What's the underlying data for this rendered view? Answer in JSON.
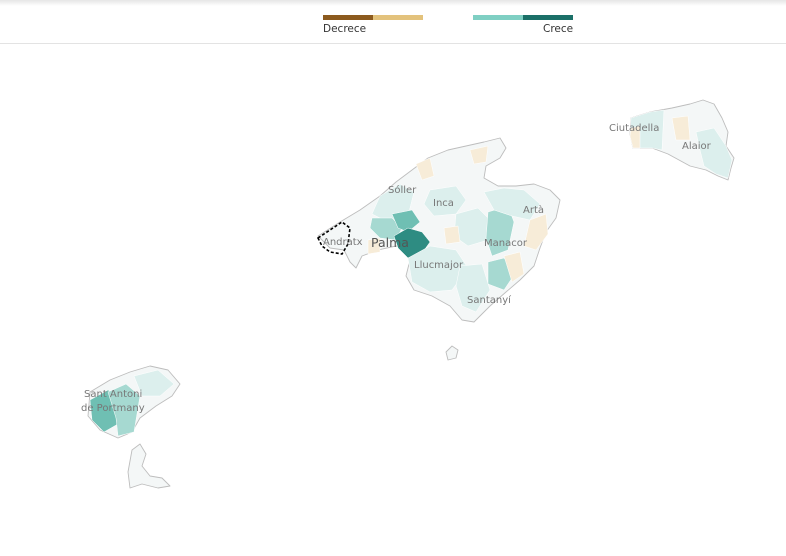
{
  "legend": {
    "decrease_label": "Decrece",
    "increase_label": "Crece",
    "decrease_colors": [
      "#8c5a1e",
      "#e3c27c"
    ],
    "increase_colors": [
      "#7fcfc3",
      "#1b7068"
    ]
  },
  "map": {
    "colors": {
      "coast": "#bdbdbd",
      "land_neutral": "#f4f7f7",
      "light_teal": "#dcefed",
      "mid_teal": "#a6d9d1",
      "teal": "#6fbfb3",
      "dark_teal": "#2e8c82",
      "light_beige": "#f7ecd8",
      "selection_outline": "#000000"
    },
    "places": {
      "ciutadella": "Ciutadella",
      "alaior": "Alaior",
      "soller": "Sóller",
      "inca": "Inca",
      "arta": "Artà",
      "andratx": "Andratx",
      "palma": "Palma",
      "manacor": "Manacor",
      "llucmajor": "Llucmajor",
      "santanyi": "Santanyí",
      "sant_antoni_line1": "Sant Antoni",
      "sant_antoni_line2": "de Portmany"
    }
  }
}
